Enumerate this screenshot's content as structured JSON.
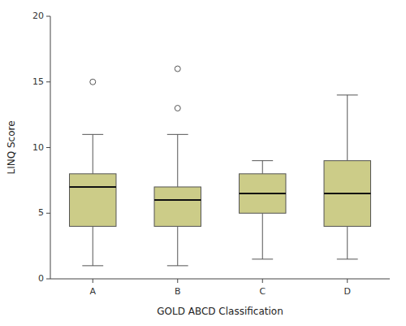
{
  "chart_data": {
    "type": "box",
    "categories": [
      "A",
      "B",
      "C",
      "D"
    ],
    "boxes": [
      {
        "q1": 4.0,
        "median": 7.0,
        "q3": 8.0,
        "whisker_low": 1.0,
        "whisker_high": 11.0,
        "outliers": [
          15.0
        ]
      },
      {
        "q1": 4.0,
        "median": 6.0,
        "q3": 7.0,
        "whisker_low": 1.0,
        "whisker_high": 11.0,
        "outliers": [
          13.0,
          16.0
        ]
      },
      {
        "q1": 5.0,
        "median": 6.5,
        "q3": 8.0,
        "whisker_low": 1.5,
        "whisker_high": 9.0,
        "outliers": []
      },
      {
        "q1": 4.0,
        "median": 6.5,
        "q3": 9.0,
        "whisker_low": 1.5,
        "whisker_high": 14.0,
        "outliers": []
      }
    ],
    "color": "#cccc88",
    "ylabel": "LINQ Score",
    "xlabel": "GOLD ABCD Classification",
    "ylim": [
      0,
      20
    ],
    "yticks": [
      0,
      5,
      10,
      15,
      20
    ],
    "grid": false
  }
}
